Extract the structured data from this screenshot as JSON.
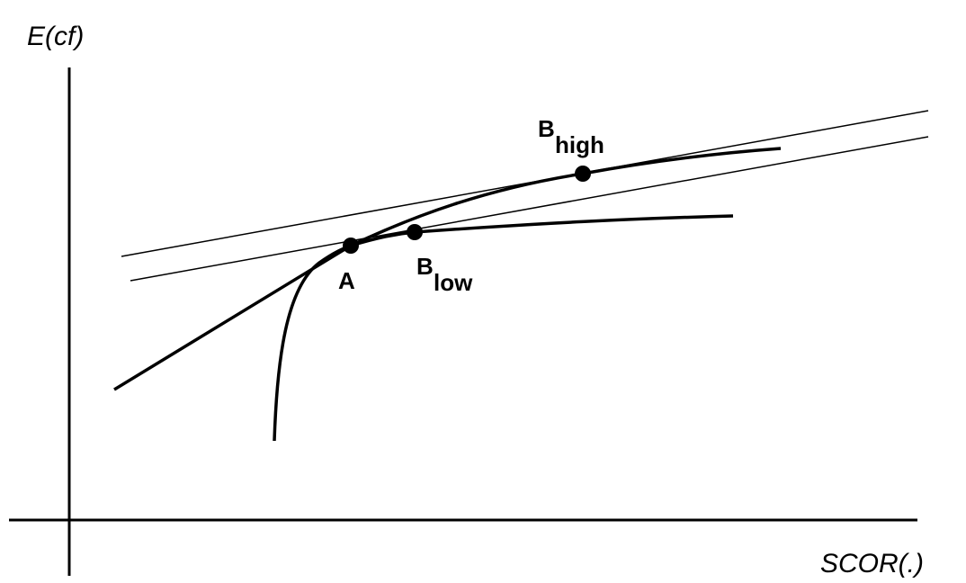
{
  "axes": {
    "y_label": "E(cf)",
    "x_label": "SCOR(.)"
  },
  "points": [
    {
      "label": "A"
    },
    {
      "label": "B",
      "subscript": "high"
    },
    {
      "label": "B",
      "subscript": "low"
    }
  ]
}
